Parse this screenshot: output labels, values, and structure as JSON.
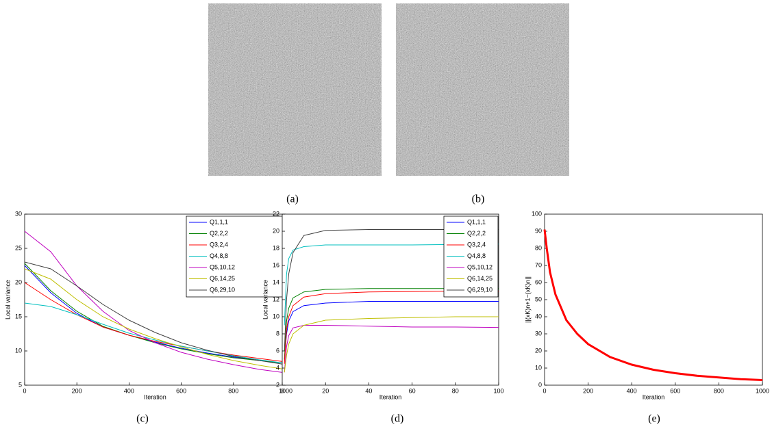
{
  "captions": [
    "(a)",
    "(b)",
    "(c)",
    "(d)",
    "(e)"
  ],
  "chart_data": [
    {
      "type": "line",
      "xlabel": "Iteration",
      "ylabel": "Local variance",
      "x": [
        0,
        100,
        200,
        300,
        400,
        500,
        600,
        700,
        800,
        900,
        1000
      ],
      "xlim": [
        0,
        1000
      ],
      "ylim": [
        5,
        30
      ],
      "xticks": [
        0,
        200,
        400,
        600,
        800,
        1000
      ],
      "yticks": [
        5,
        10,
        15,
        20,
        25,
        30
      ],
      "legend": "upper right",
      "series": [
        {
          "name": "Q1,1,1",
          "color": "#0000ff",
          "values": [
            22.5,
            18.5,
            15.5,
            13.5,
            12.3,
            11.3,
            10.4,
            9.7,
            9.1,
            8.6,
            8.2
          ]
        },
        {
          "name": "Q2,2,2",
          "color": "#008000",
          "values": [
            22.8,
            18.8,
            15.8,
            13.6,
            12.3,
            11.2,
            10.3,
            9.6,
            9.0,
            8.6,
            8.2
          ]
        },
        {
          "name": "Q3,2,4",
          "color": "#ff0000",
          "values": [
            20,
            17.5,
            15.3,
            13.5,
            12.3,
            11.4,
            10.7,
            10.0,
            9.4,
            8.9,
            8.4
          ]
        },
        {
          "name": "Q4,8,8",
          "color": "#00bfbf",
          "values": [
            17,
            16.5,
            15.3,
            13.9,
            12.6,
            11.6,
            10.7,
            10.0,
            9.3,
            8.7,
            8.2
          ]
        },
        {
          "name": "Q5,10,12",
          "color": "#bf00bf",
          "values": [
            27.5,
            24.5,
            19.5,
            15.8,
            13.0,
            11.2,
            9.8,
            8.8,
            8.0,
            7.3,
            6.8
          ]
        },
        {
          "name": "Q6,14,25",
          "color": "#bfbf00",
          "values": [
            22,
            20.5,
            17.5,
            15,
            13.2,
            11.8,
            10.6,
            9.5,
            8.6,
            7.9,
            7.3
          ]
        },
        {
          "name": "Q6,29,10",
          "color": "#404040",
          "values": [
            23,
            22,
            19.5,
            16.8,
            14.5,
            12.7,
            11.2,
            10.1,
            9.2,
            8.6,
            8.0
          ]
        }
      ]
    },
    {
      "type": "line",
      "xlabel": "Iteration",
      "ylabel": "Local variance",
      "x": [
        1,
        2,
        3,
        5,
        10,
        20,
        40,
        60,
        80,
        100
      ],
      "xlim": [
        0,
        100
      ],
      "ylim": [
        2,
        22
      ],
      "xticks": [
        0,
        20,
        40,
        60,
        80,
        100
      ],
      "yticks": [
        2,
        4,
        6,
        8,
        10,
        12,
        14,
        16,
        18,
        20,
        22
      ],
      "legend": "upper right",
      "series": [
        {
          "name": "Q1,1,1",
          "color": "#0000ff",
          "values": [
            5,
            8,
            9.5,
            10.6,
            11.3,
            11.6,
            11.8,
            11.8,
            11.8,
            11.8
          ]
        },
        {
          "name": "Q2,2,2",
          "color": "#008000",
          "values": [
            5,
            9.5,
            11,
            12.2,
            12.9,
            13.2,
            13.3,
            13.3,
            13.3,
            13.3
          ]
        },
        {
          "name": "Q3,2,4",
          "color": "#ff0000",
          "values": [
            4.5,
            8.5,
            10,
            11.3,
            12.3,
            12.7,
            12.9,
            12.95,
            13,
            13
          ]
        },
        {
          "name": "Q4,8,8",
          "color": "#00bfbf",
          "values": [
            9,
            15,
            16.8,
            17.8,
            18.2,
            18.4,
            18.4,
            18.4,
            18.45,
            18.5
          ]
        },
        {
          "name": "Q5,10,12",
          "color": "#bf00bf",
          "values": [
            3.5,
            6.5,
            7.8,
            8.7,
            9.0,
            9.0,
            8.9,
            8.8,
            8.8,
            8.75
          ]
        },
        {
          "name": "Q6,14,25",
          "color": "#bfbf00",
          "values": [
            3.5,
            5.5,
            6.8,
            8.0,
            9.0,
            9.6,
            9.8,
            9.9,
            10,
            10
          ]
        },
        {
          "name": "Q6,29,10",
          "color": "#404040",
          "values": [
            6,
            12,
            15,
            17.5,
            19.5,
            20.1,
            20.2,
            20.2,
            20.2,
            20.2
          ]
        }
      ]
    },
    {
      "type": "line",
      "xlabel": "Iteration",
      "ylabel": "||(xK)n+1−(xK)n||",
      "x": [
        0,
        10,
        25,
        50,
        100,
        150,
        200,
        300,
        400,
        500,
        600,
        700,
        800,
        900,
        1000
      ],
      "xlim": [
        0,
        1000
      ],
      "ylim": [
        0,
        100
      ],
      "xticks": [
        0,
        200,
        400,
        600,
        800,
        1000
      ],
      "yticks": [
        0,
        10,
        20,
        30,
        40,
        50,
        60,
        70,
        80,
        90,
        100
      ],
      "series": [
        {
          "color": "#ff0000",
          "values": [
            91,
            80,
            66,
            53,
            38,
            30,
            24,
            16.5,
            12,
            9,
            7,
            5.5,
            4.5,
            3.5,
            3
          ]
        }
      ]
    }
  ]
}
